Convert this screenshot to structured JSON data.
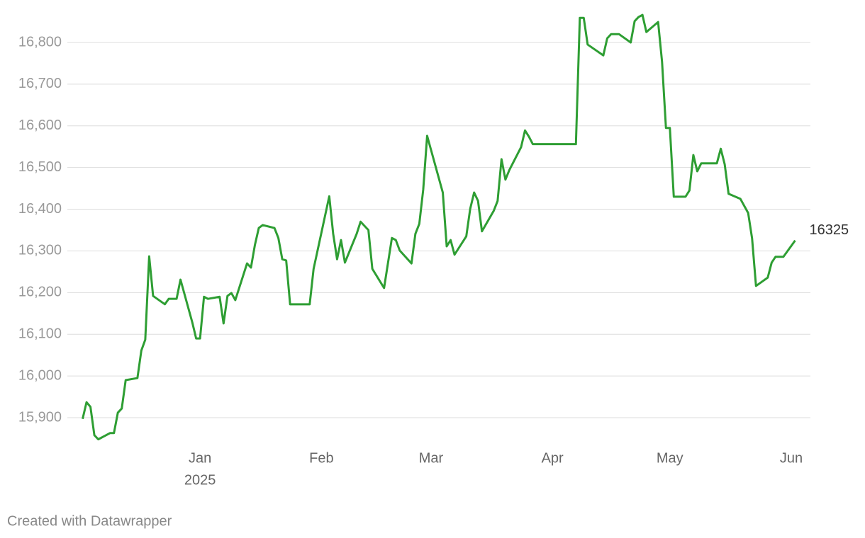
{
  "chart_data": {
    "type": "line",
    "x": [
      -30,
      -29,
      -28,
      -27,
      -26,
      -23,
      -22,
      -21,
      -20,
      -19,
      -16,
      -15,
      -14,
      -13,
      -12,
      -9,
      -8,
      -6,
      -5,
      -2,
      -1,
      0,
      1,
      2,
      5,
      6,
      7,
      8,
      9,
      12,
      13,
      14,
      15,
      16,
      19,
      20,
      21,
      22,
      23,
      28,
      29,
      33,
      34,
      35,
      36,
      37,
      40,
      41,
      43,
      44,
      47,
      49,
      50,
      51,
      54,
      55,
      56,
      57,
      58,
      62,
      63,
      64,
      65,
      68,
      69,
      70,
      71,
      72,
      75,
      76,
      77,
      78,
      79,
      82,
      83,
      84,
      85,
      96,
      97,
      98,
      99,
      103,
      104,
      105,
      107,
      110,
      111,
      112,
      113,
      114,
      117,
      118,
      119,
      120,
      121,
      124,
      125,
      126,
      127,
      128,
      132,
      133,
      134,
      135,
      138,
      140,
      141,
      142,
      145,
      146,
      147,
      149,
      152
    ],
    "series": [
      {
        "color": "#2e9e33",
        "values": [
          15897,
          15937,
          15926,
          15858,
          15848,
          15863,
          15863,
          15912,
          15922,
          15990,
          15995,
          16061,
          16087,
          16287,
          16192,
          16172,
          16185,
          16185,
          16231,
          16129,
          16090,
          16090,
          16190,
          16185,
          16190,
          16126,
          16192,
          16199,
          16182,
          16270,
          16260,
          16314,
          16355,
          16362,
          16355,
          16331,
          16280,
          16277,
          16172,
          16172,
          16257,
          16431,
          16341,
          16280,
          16326,
          16272,
          16341,
          16370,
          16350,
          16257,
          16211,
          16331,
          16326,
          16301,
          16270,
          16341,
          16365,
          16447,
          16576,
          16440,
          16311,
          16326,
          16291,
          16335,
          16401,
          16440,
          16420,
          16347,
          16396,
          16420,
          16520,
          16471,
          16494,
          16549,
          16589,
          16574,
          16556,
          16556,
          16859,
          16859,
          16795,
          16769,
          16810,
          16820,
          16820,
          16800,
          16851,
          16861,
          16866,
          16825,
          16849,
          16754,
          16595,
          16595,
          16430,
          16430,
          16445,
          16530,
          16491,
          16510,
          16510,
          16545,
          16508,
          16437,
          16425,
          16391,
          16330,
          16216,
          16236,
          16272,
          16286,
          16286,
          16325
        ]
      }
    ],
    "xlim": [
      -31,
      153
    ],
    "xticks": [
      {
        "value": 0,
        "label": "Jan"
      },
      {
        "value": 31,
        "label": "Feb"
      },
      {
        "value": 59,
        "label": "Mar"
      },
      {
        "value": 90,
        "label": "Apr"
      },
      {
        "value": 120,
        "label": "May"
      },
      {
        "value": 151,
        "label": "Jun"
      }
    ],
    "year_label": "2025",
    "ylim": [
      15800,
      16900
    ],
    "yticks": [
      {
        "value": 15900,
        "label": "15,900"
      },
      {
        "value": 16000,
        "label": "16,000"
      },
      {
        "value": 16100,
        "label": "16,100"
      },
      {
        "value": 16200,
        "label": "16,200"
      },
      {
        "value": 16300,
        "label": "16,300"
      },
      {
        "value": 16400,
        "label": "16,400"
      },
      {
        "value": 16500,
        "label": "16,500"
      },
      {
        "value": 16600,
        "label": "16,600"
      },
      {
        "value": 16700,
        "label": "16,700"
      },
      {
        "value": 16800,
        "label": "16,800"
      }
    ],
    "grid": true,
    "footer": "Created with Datawrapper"
  }
}
